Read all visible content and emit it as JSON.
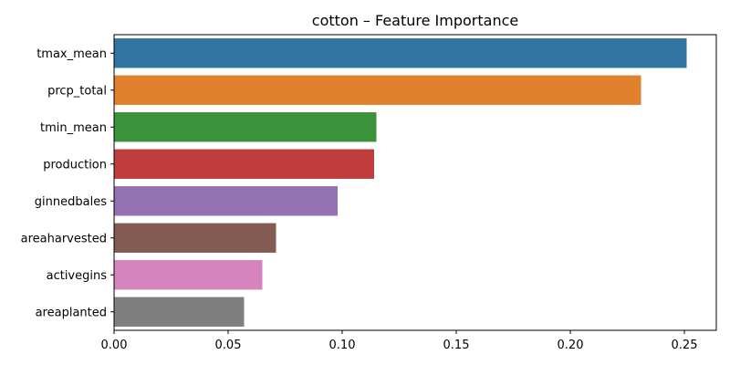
{
  "chart_data": {
    "type": "bar",
    "orientation": "horizontal",
    "title": "cotton – Feature Importance",
    "xlabel": "",
    "ylabel": "",
    "categories": [
      "tmax_mean",
      "prcp_total",
      "tmin_mean",
      "production",
      "ginnedbales",
      "areaharvested",
      "activegins",
      "areaplanted"
    ],
    "values": [
      0.251,
      0.231,
      0.115,
      0.114,
      0.098,
      0.071,
      0.065,
      0.057
    ],
    "colors": [
      "#3274a1",
      "#e1812c",
      "#3a923a",
      "#c03d3e",
      "#9372b2",
      "#845b53",
      "#d684bd",
      "#7f7f7f"
    ],
    "xlim": [
      0,
      0.264
    ],
    "xticks": [
      0.0,
      0.05,
      0.1,
      0.15,
      0.2,
      0.25
    ],
    "xtick_labels": [
      "0.00",
      "0.05",
      "0.10",
      "0.15",
      "0.20",
      "0.25"
    ],
    "grid": false,
    "legend": "none"
  }
}
